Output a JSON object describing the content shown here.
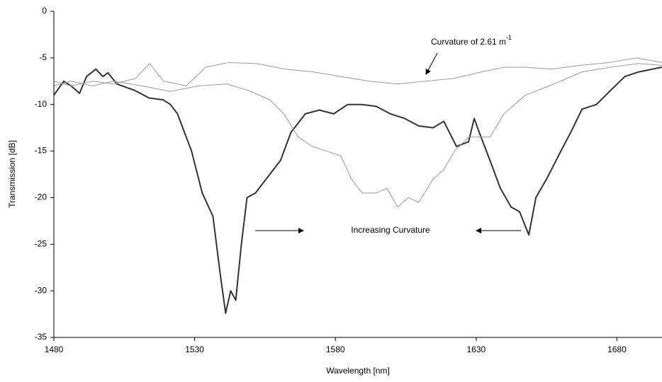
{
  "chart_data": {
    "type": "line",
    "x_label": "Wavelength [nm]",
    "y_label": "Transmission [dB]",
    "xlim": [
      1480,
      1696
    ],
    "xticks": [
      1480,
      1530,
      1580,
      1630,
      1680
    ],
    "ylim": [
      -35,
      0
    ],
    "yticks": [
      0,
      -5,
      -10,
      -15,
      -20,
      -25,
      -30,
      -35
    ],
    "annotations": [
      {
        "text": "Curvature of 2.61 m",
        "superscript": "-1"
      },
      {
        "text": "Increasing Curvature"
      }
    ],
    "series": [
      {
        "color": "#333333",
        "width": 2,
        "x": [
          1480,
          1483.5,
          1486.1,
          1489.1,
          1491.6,
          1494.9,
          1497.4,
          1499.2,
          1502.4,
          1508.8,
          1513.8,
          1518.8,
          1521.4,
          1523.9,
          1528.9,
          1532.7,
          1536.5,
          1539.0,
          1541.0,
          1542.8,
          1544.6,
          1546.6,
          1548.6,
          1551.6,
          1555.4,
          1560.5,
          1564.2,
          1569.3,
          1574.3,
          1579.4,
          1584.4,
          1589.5,
          1594.5,
          1599.5,
          1604.6,
          1609.6,
          1614.7,
          1618.5,
          1623.0,
          1627.3,
          1629.3,
          1631.1,
          1634.9,
          1638.6,
          1642.4,
          1645.4,
          1648.7,
          1651.2,
          1655.0,
          1660.1,
          1663.9,
          1667.6,
          1672.7,
          1677.7,
          1682.8,
          1687.8,
          1696
        ],
        "values": [
          -9,
          -7.5,
          -8,
          -8.8,
          -7,
          -6.2,
          -7,
          -6.6,
          -7.8,
          -8.5,
          -9.3,
          -9.5,
          -10,
          -11,
          -15,
          -19.5,
          -22,
          -28,
          -32.4,
          -30,
          -31,
          -25,
          -20,
          -19.5,
          -18,
          -16,
          -13,
          -11,
          -10.6,
          -11,
          -10,
          -10,
          -10.2,
          -11,
          -11.5,
          -12.3,
          -12.5,
          -11.8,
          -14.5,
          -14,
          -11.5,
          -13,
          -16,
          -19,
          -21,
          -21.5,
          -24,
          -20,
          -18,
          -15,
          -12.8,
          -10.5,
          -10,
          -8.5,
          -7,
          -6.5,
          -6
        ]
      },
      {
        "color": "#999999",
        "width": 1,
        "x": [
          1480,
          1486,
          1494,
          1501,
          1509,
          1514,
          1519,
          1527,
          1534,
          1542,
          1552,
          1562,
          1572,
          1582,
          1592,
          1602,
          1612,
          1622,
          1632,
          1640,
          1647,
          1657,
          1667,
          1677,
          1687,
          1696
        ],
        "values": [
          -7.5,
          -8,
          -7.5,
          -7.8,
          -7.2,
          -5.6,
          -7.5,
          -8,
          -6,
          -5.5,
          -5.6,
          -6.2,
          -6.5,
          -7,
          -7.5,
          -7.8,
          -7.5,
          -7.2,
          -6.5,
          -6,
          -6,
          -6.2,
          -5.8,
          -5.5,
          -5,
          -5.5
        ]
      },
      {
        "color": "#999999",
        "width": 1,
        "x": [
          1480,
          1486.1,
          1493.6,
          1501.2,
          1511.3,
          1521.4,
          1531.4,
          1541.5,
          1549.1,
          1556.7,
          1561.7,
          1566.8,
          1571.8,
          1576.8,
          1581.9,
          1585.7,
          1589.5,
          1594.5,
          1598.3,
          1602.1,
          1605.9,
          1609.6,
          1614.7,
          1618.5,
          1622.3,
          1627.3,
          1634.9,
          1639.9,
          1647.5,
          1657.6,
          1667.6,
          1677.7,
          1687.8,
          1696
        ],
        "values": [
          -8,
          -7.5,
          -8,
          -7.5,
          -8,
          -8.6,
          -8,
          -7.8,
          -8.5,
          -9.5,
          -11,
          -13.5,
          -14.5,
          -15,
          -15.5,
          -18,
          -19.5,
          -19.5,
          -19,
          -21,
          -20,
          -20.5,
          -18,
          -17,
          -15,
          -13.5,
          -13.5,
          -11,
          -9,
          -7.8,
          -6.5,
          -6,
          -5.6,
          -5.8
        ]
      }
    ]
  }
}
